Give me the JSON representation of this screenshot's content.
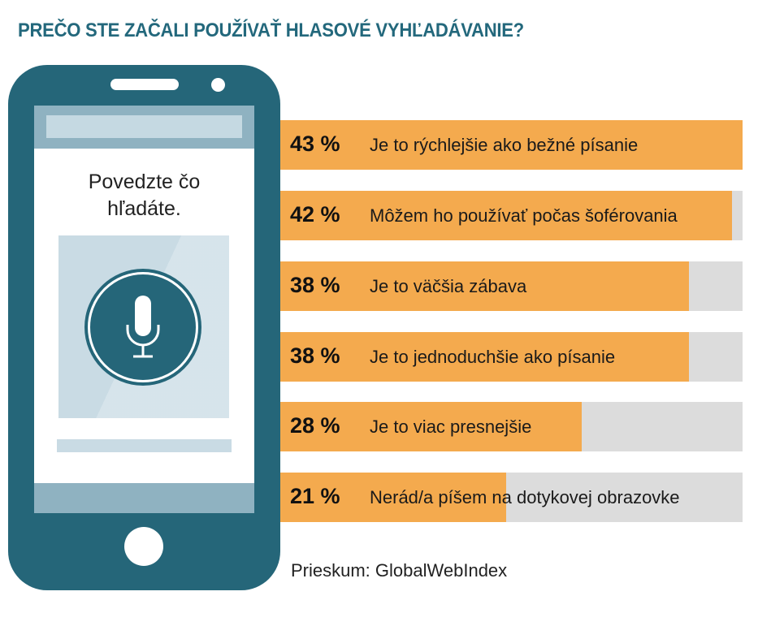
{
  "chart_data": {
    "type": "bar",
    "orientation": "horizontal",
    "title": "PREČO STE ZAČALI POUŽÍVAŤ HLASOVÉ VYHĽADÁVANIE?",
    "categories": [
      "Je to rýchlejšie ako bežné písanie",
      "Môžem ho používať počas šoférovania",
      "Je to väčšia zábava",
      "Je to jednoduchšie ako písanie",
      "Je to viac presnejšie",
      "Nerád/a píšem na dotykovej obrazovke"
    ],
    "values": [
      43,
      42,
      38,
      38,
      28,
      21
    ],
    "value_labels": [
      "43 %",
      "42 %",
      "38 %",
      "38 %",
      "28 %",
      "21 %"
    ],
    "xlim": [
      0,
      43
    ],
    "source": "Prieskum: GlobalWebIndex",
    "colors": {
      "bar": "#f4aa4e",
      "track": "#dcdcdc",
      "title": "#23687c",
      "phone": "#256679"
    }
  },
  "phone": {
    "prompt_line1": "Povedzte čo",
    "prompt_line2": "hľadáte."
  }
}
